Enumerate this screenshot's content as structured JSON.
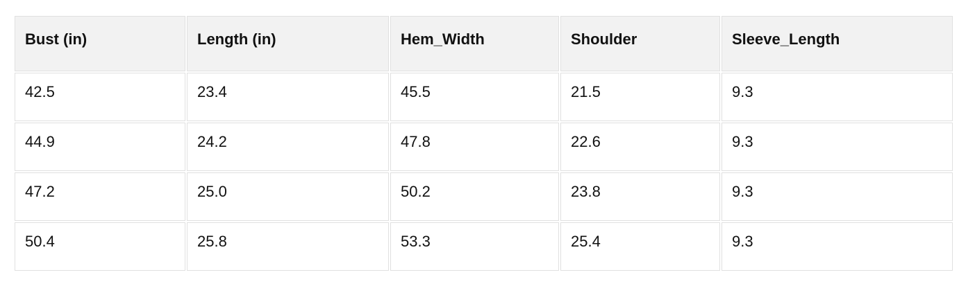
{
  "chart_data": {
    "type": "table",
    "columns": [
      "Bust (in)",
      "Length (in)",
      "Hem_Width",
      "Shoulder",
      "Sleeve_Length"
    ],
    "rows": [
      [
        "42.5",
        "23.4",
        "45.5",
        "21.5",
        "9.3"
      ],
      [
        "44.9",
        "24.2",
        "47.8",
        "22.6",
        "9.3"
      ],
      [
        "47.2",
        "25.0",
        "50.2",
        "23.8",
        "9.3"
      ],
      [
        "50.4",
        "25.8",
        "53.3",
        "25.4",
        "9.3"
      ]
    ],
    "layout": {
      "header_row": true,
      "grid": true
    }
  },
  "colors": {
    "header_background": "#f2f2f2",
    "cell_background": "#ffffff",
    "border": "#e0e0e0",
    "text": "#111111"
  }
}
